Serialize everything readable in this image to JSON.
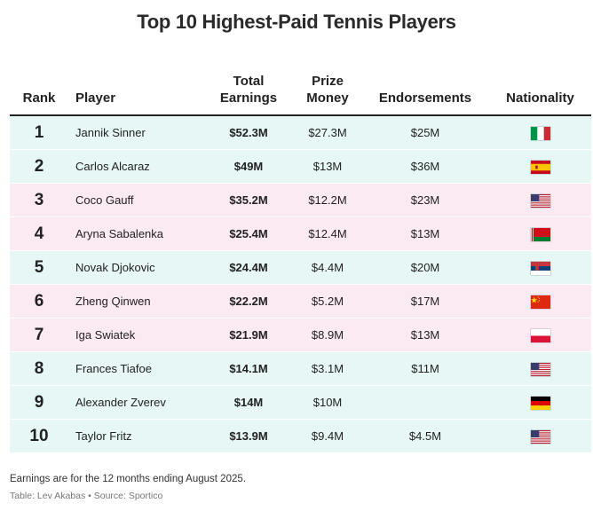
{
  "title": "Top 10 Highest-Paid Tennis Players",
  "columns": {
    "rank": "Rank",
    "player": "Player",
    "total_line1": "Total",
    "total_line2": "Earnings",
    "prize_line1": "Prize",
    "prize_line2": "Money",
    "endorsements": "Endorsements",
    "nationality": "Nationality"
  },
  "rows": [
    {
      "rank": "1",
      "player": "Jannik Sinner",
      "total": "$52.3M",
      "prize": "$27.3M",
      "endorsements": "$25M",
      "flag": "italy-flag"
    },
    {
      "rank": "2",
      "player": "Carlos Alcaraz",
      "total": "$49M",
      "prize": "$13M",
      "endorsements": "$36M",
      "flag": "spain-flag"
    },
    {
      "rank": "3",
      "player": "Coco Gauff",
      "total": "$35.2M",
      "prize": "$12.2M",
      "endorsements": "$23M",
      "flag": "usa-flag"
    },
    {
      "rank": "4",
      "player": "Aryna Sabalenka",
      "total": "$25.4M",
      "prize": "$12.4M",
      "endorsements": "$13M",
      "flag": "belarus-flag"
    },
    {
      "rank": "5",
      "player": "Novak Djokovic",
      "total": "$24.4M",
      "prize": "$4.4M",
      "endorsements": "$20M",
      "flag": "serbia-flag"
    },
    {
      "rank": "6",
      "player": "Zheng Qinwen",
      "total": "$22.2M",
      "prize": "$5.2M",
      "endorsements": "$17M",
      "flag": "china-flag"
    },
    {
      "rank": "7",
      "player": "Iga Swiatek",
      "total": "$21.9M",
      "prize": "$8.9M",
      "endorsements": "$13M",
      "flag": "poland-flag"
    },
    {
      "rank": "8",
      "player": "Frances Tiafoe",
      "total": "$14.1M",
      "prize": "$3.1M",
      "endorsements": "$11M",
      "flag": "usa-flag"
    },
    {
      "rank": "9",
      "player": "Alexander Zverev",
      "total": "$14M",
      "prize": "$10M",
      "endorsements": "",
      "flag": "germany-flag"
    },
    {
      "rank": "10",
      "player": "Taylor Fritz",
      "total": "$13.9M",
      "prize": "$9.4M",
      "endorsements": "$4.5M",
      "flag": "usa-flag"
    }
  ],
  "footnote": "Earnings are for the 12 months ending August 2025.",
  "source": "Table: Lev Akabas • Source: Sportico",
  "colors": {
    "row_teal": "#e6f7f5",
    "row_pink": "#fbeaf2"
  }
}
